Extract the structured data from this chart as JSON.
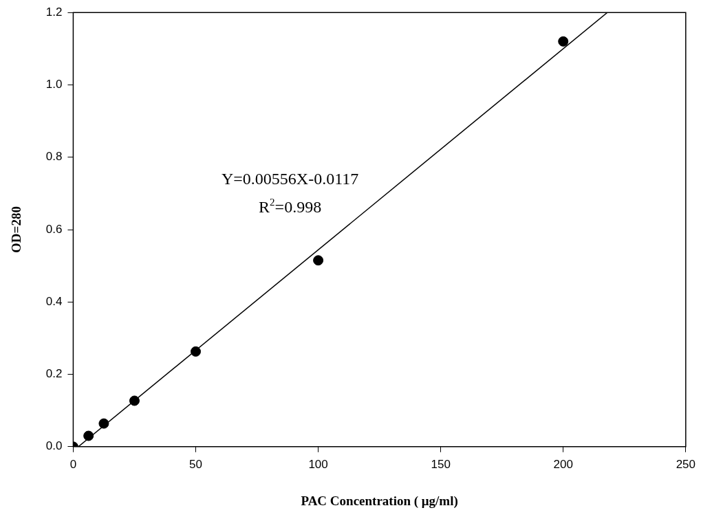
{
  "chart_data": {
    "type": "scatter",
    "xlabel": "PAC Concentration ( μg/ml)",
    "ylabel": "OD=280",
    "xlim": [
      0,
      250
    ],
    "xticks": [
      0,
      50,
      100,
      150,
      200,
      250
    ],
    "ylim": [
      0,
      1.2
    ],
    "yticks": [
      {
        "value": 0,
        "label": "0.0"
      },
      {
        "value": 0.2,
        "label": "0.2"
      },
      {
        "value": 0.4,
        "label": "0.4"
      },
      {
        "value": 0.6,
        "label": "0.6"
      },
      {
        "value": 0.8,
        "label": "0.8"
      },
      {
        "value": 1.0,
        "label": "1.0"
      },
      {
        "value": 1.2,
        "label": "1.2"
      }
    ],
    "grid": false,
    "legend": false,
    "annotations": [
      "Y=0.00556X-0.0117",
      "R$^{2}$=0.998"
    ],
    "series": [
      {
        "color": "#000000",
        "marker": "circle",
        "x": [
          0,
          6.25,
          12.5,
          25,
          50,
          100,
          200
        ],
        "values": [
          0,
          0.03,
          0.064,
          0.127,
          0.263,
          0.515,
          1.12
        ]
      },
      {
        "type": "line",
        "color": "#000000",
        "marker": "none",
        "line_style": "solid",
        "x": [
          2.1,
          218
        ],
        "values": [
          0,
          1.2
        ]
      }
    ]
  }
}
